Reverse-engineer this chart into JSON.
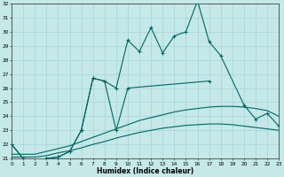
{
  "xlabel": "Humidex (Indice chaleur)",
  "background_color": "#c5e8e8",
  "grid_color": "#a8d4d4",
  "line_color": "#006666",
  "line1_x": [
    0,
    1,
    2,
    3,
    4,
    5,
    6,
    7,
    8,
    9,
    10,
    11,
    12,
    13,
    14,
    15,
    16,
    17,
    18,
    20,
    21,
    22,
    23
  ],
  "line1_y": [
    22.0,
    21.0,
    20.8,
    21.0,
    21.1,
    21.5,
    23.0,
    26.7,
    26.5,
    26.0,
    29.4,
    28.6,
    30.3,
    28.5,
    29.7,
    30.0,
    32.2,
    29.3,
    28.3,
    24.8,
    23.8,
    24.2,
    23.3
  ],
  "line2_x": [
    0,
    1,
    2,
    3,
    4,
    5,
    6,
    7,
    8,
    9,
    10,
    17
  ],
  "line2_y": [
    22.0,
    21.0,
    20.8,
    21.0,
    21.1,
    21.5,
    23.0,
    26.7,
    26.5,
    23.0,
    26.0,
    26.5
  ],
  "smooth1_x": [
    0,
    1,
    2,
    3,
    4,
    5,
    6,
    7,
    8,
    9,
    10,
    11,
    12,
    13,
    14,
    15,
    16,
    17,
    18,
    19,
    20,
    21,
    22,
    23
  ],
  "smooth1_y": [
    21.3,
    21.3,
    21.3,
    21.5,
    21.7,
    21.9,
    22.2,
    22.5,
    22.8,
    23.1,
    23.4,
    23.7,
    23.9,
    24.1,
    24.3,
    24.45,
    24.55,
    24.65,
    24.7,
    24.7,
    24.65,
    24.55,
    24.4,
    24.0
  ],
  "smooth2_x": [
    0,
    1,
    2,
    3,
    4,
    5,
    6,
    7,
    8,
    9,
    10,
    11,
    12,
    13,
    14,
    15,
    16,
    17,
    18,
    19,
    20,
    21,
    22,
    23
  ],
  "smooth2_y": [
    21.1,
    21.1,
    21.1,
    21.2,
    21.4,
    21.55,
    21.75,
    22.0,
    22.2,
    22.45,
    22.65,
    22.85,
    23.0,
    23.15,
    23.25,
    23.35,
    23.4,
    23.45,
    23.45,
    23.4,
    23.3,
    23.2,
    23.1,
    23.0
  ],
  "ylim": [
    21,
    32
  ],
  "xlim": [
    0,
    23
  ],
  "yticks": [
    21,
    22,
    23,
    24,
    25,
    26,
    27,
    28,
    29,
    30,
    31,
    32
  ],
  "xticks": [
    0,
    1,
    2,
    3,
    4,
    5,
    6,
    7,
    8,
    9,
    10,
    11,
    12,
    13,
    14,
    15,
    16,
    17,
    18,
    19,
    20,
    21,
    22,
    23
  ]
}
